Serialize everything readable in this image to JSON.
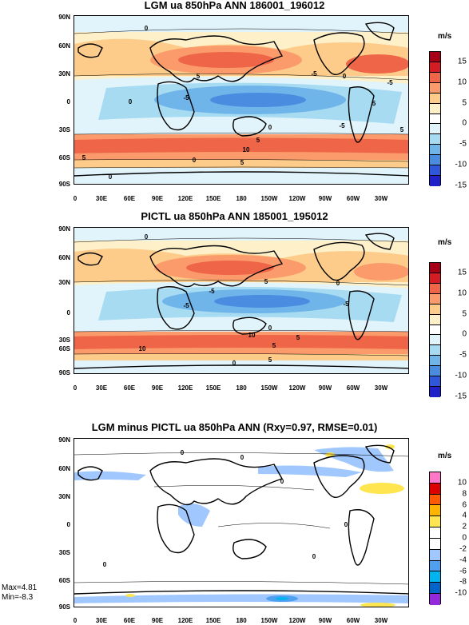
{
  "units_label": "m/s",
  "panels": [
    {
      "title": "LGM ua 850hPa ANN 186001_196012",
      "lat_labels": [
        "90N",
        "60N",
        "30N",
        "0",
        "30S",
        "60S",
        "90S"
      ],
      "lon_labels": [
        "0",
        "30E",
        "60E",
        "90E",
        "120E",
        "150E",
        "180",
        "150W",
        "120W",
        "90W",
        "60W",
        "30W"
      ],
      "contour_labels": [
        "0",
        "5",
        "-5",
        "0",
        "-5",
        "0",
        "5",
        "-5",
        "0",
        "5",
        "10",
        "-5",
        "5",
        "0",
        "5",
        "0",
        "5"
      ],
      "colorbar": {
        "levels": [
          "15",
          "10",
          "5",
          "0",
          "-5",
          "-10",
          "-15"
        ],
        "colors": [
          "#a50015",
          "#d21d24",
          "#ef6548",
          "#fb9a6a",
          "#fdcc8a",
          "#fef0c9",
          "#ffffff",
          "#e1f4fb",
          "#a6dbf2",
          "#6fb5ea",
          "#4a8de0",
          "#2f57d9",
          "#2020c8"
        ]
      }
    },
    {
      "title": "PICTL ua 850hPa ANN 185001_195012",
      "lat_labels": [
        "90N",
        "60N",
        "30N",
        "0",
        "30S",
        "60S",
        "90S"
      ],
      "lon_labels": [
        "0",
        "30E",
        "60E",
        "90E",
        "120E",
        "150E",
        "180",
        "150W",
        "120W",
        "90W",
        "60W",
        "30W"
      ],
      "contour_labels": [
        "0",
        "5",
        "-5",
        "0",
        "-5",
        "-5",
        "0",
        "10",
        "5",
        "10",
        "5",
        "0",
        "5"
      ],
      "colorbar": {
        "levels": [
          "15",
          "10",
          "5",
          "0",
          "-5",
          "-10",
          "-15"
        ],
        "colors": [
          "#a50015",
          "#d21d24",
          "#ef6548",
          "#fb9a6a",
          "#fdcc8a",
          "#fef0c9",
          "#ffffff",
          "#e1f4fb",
          "#a6dbf2",
          "#6fb5ea",
          "#4a8de0",
          "#2f57d9",
          "#2020c8"
        ]
      }
    },
    {
      "title": "LGM minus PICTL ua 850hPa ANN (Rxy=0.97, RMSE=0.01)",
      "lat_labels": [
        "90N",
        "60N",
        "30N",
        "0",
        "30S",
        "60S",
        "90S"
      ],
      "lon_labels": [
        "0",
        "30E",
        "60E",
        "90E",
        "120E",
        "150E",
        "180",
        "150W",
        "120W",
        "90W",
        "60W",
        "30W"
      ],
      "contour_labels": [
        "0",
        "0",
        "0",
        "0",
        "0",
        "0"
      ],
      "colorbar": {
        "levels": [
          "10",
          "8",
          "6",
          "4",
          "2",
          "0",
          "-2",
          "-4",
          "-6",
          "-8",
          "-10"
        ],
        "colors": [
          "#ff78c8",
          "#dc0000",
          "#ff5a00",
          "#ffb400",
          "#ffe650",
          "#ffffff",
          "#ffffff",
          "#a0c8ff",
          "#50a0f0",
          "#00b4f0",
          "#0064c8",
          "#9628dc"
        ]
      },
      "stats": {
        "max": "Max=4.81",
        "min": "Min=-8.3"
      }
    }
  ]
}
